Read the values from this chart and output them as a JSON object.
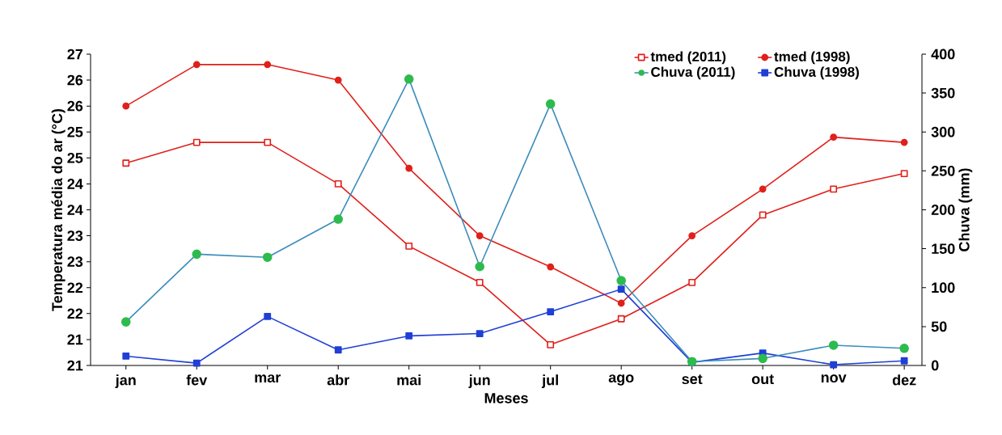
{
  "chart_data": {
    "type": "line",
    "xlabel": "Meses",
    "ylabel": "Temperatura média do ar (°C)",
    "y2label": "Chuva (mm)",
    "categories": [
      "jan",
      "fev",
      "mar",
      "abr",
      "mai",
      "jun",
      "jul",
      "ago",
      "set",
      "out",
      "nov",
      "dez"
    ],
    "ylim": [
      21,
      27
    ],
    "yticks": [
      21,
      {
        "value": 21.5,
        "label": "21"
      },
      22,
      {
        "value": 22.5,
        "label": "22"
      },
      23,
      {
        "value": 23.5,
        "label": "23"
      },
      24,
      {
        "value": 24.5,
        "label": "24"
      },
      25,
      {
        "value": 25.5,
        "label": "25"
      },
      26,
      {
        "value": 26.5,
        "label": "26"
      },
      27
    ],
    "y2lim": [
      0,
      400
    ],
    "y2ticks": [
      0,
      50,
      100,
      150,
      200,
      250,
      300,
      350,
      400
    ],
    "legend": "top right",
    "grid": false,
    "series": [
      {
        "name": "tmed (2011)",
        "color": "#e0201b",
        "marker": "square",
        "colors": [
          "#ffffff",
          "#ffffff",
          "#ffffff",
          "#ffffff",
          "#ffffff",
          "#ffffff",
          "#ffffff",
          "#ffffff",
          "#ffffff",
          "#ffffff",
          "#ffffff",
          "#ffffff"
        ],
        "values": [
          24.9,
          25.3,
          25.3,
          24.5,
          23.3,
          22.6,
          21.4,
          21.9,
          22.6,
          23.9,
          24.4,
          24.7
        ]
      },
      {
        "name": "tmed (1998)",
        "color": "#e0201b",
        "marker": "circle",
        "values": [
          26.0,
          26.8,
          26.8,
          26.5,
          24.8,
          23.5,
          22.9,
          22.2,
          23.5,
          24.4,
          25.4,
          25.3
        ]
      },
      {
        "name": "Chuva (2011)",
        "color": "#3c8dbc",
        "marker": "circle",
        "axis": "y2",
        "colors": [
          "#2dbb4e",
          "#2dbb4e",
          "#2dbb4e",
          "#2dbb4e",
          "#2dbb4e",
          "#2dbb4e",
          "#2dbb4e",
          "#2dbb4e",
          "#2dbb4e",
          "#2dbb4e",
          "#2dbb4e",
          "#2dbb4e"
        ],
        "values": [
          56,
          143,
          139,
          188,
          368,
          127,
          336,
          109,
          5,
          9,
          26,
          22
        ]
      },
      {
        "name": "Chuva (1998)",
        "color": "#1f3fd6",
        "marker": "square",
        "axis": "y2",
        "values": [
          12,
          3,
          63,
          20,
          38,
          41,
          69,
          98,
          4,
          16,
          1,
          6
        ]
      }
    ]
  }
}
